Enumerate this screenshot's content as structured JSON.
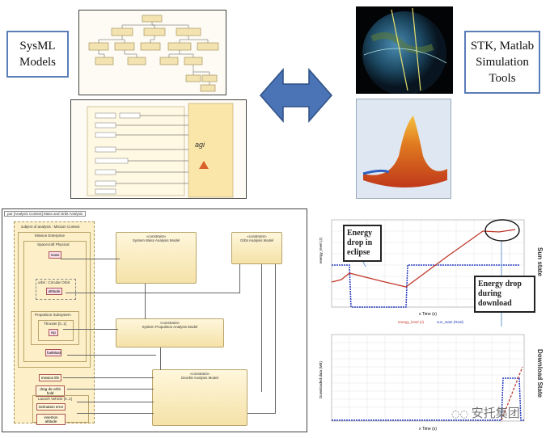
{
  "labels": {
    "sysml": "SysML Models",
    "tools": "STK, Matlab Simulation Tools"
  },
  "diagram": {
    "frame_title": "par [Analysis Context] Mass and Orbit Analysis",
    "subject": "subject of analysis : Mission Context",
    "enterprise": "Mission Enterprise",
    "spacecraft": "Spacecraft Physical",
    "mass": "mass",
    "orbit": "orbit : Circular Orbit",
    "attitude": "attitude",
    "propulsion": "Propulsion Subsystem",
    "thruster": "Thruster [0..1]",
    "isp": "isp",
    "fuel": "fuelMass",
    "mission_life": "mission life",
    "orbit_hold": "drag de-orbit hold",
    "launch": "Launch Vehicle [0..1]",
    "inj_error": "inclination error",
    "ins_att": "insertion attitude",
    "mass_model": "System Mass Analysis Model",
    "orbit_model": "Orbit Analysis Model",
    "prop_model": "System Propulsion Analysis Model",
    "deorbit_model": "Deorbit Analysis Model",
    "stereotype": "«constraint»",
    "equal": "«equal»"
  },
  "chart_top": {
    "xlabel": "x Time (s)",
    "ylabel": "energy_level (J)",
    "y2label": "Sun state",
    "legend": [
      "energy_level (J)",
      "sun_state (Real)"
    ],
    "annotation_eclipse": "Energy drop in eclipse",
    "annotation_download": "Energy drop during download",
    "colors": {
      "energy": "#c0392b",
      "sun": "#2b3fbf"
    }
  },
  "chart_bottom": {
    "xlabel": "x Time (s)",
    "ylabel": "Downloaded data (MB)",
    "y2label": "Download State"
  },
  "watermark": "安托集团"
}
